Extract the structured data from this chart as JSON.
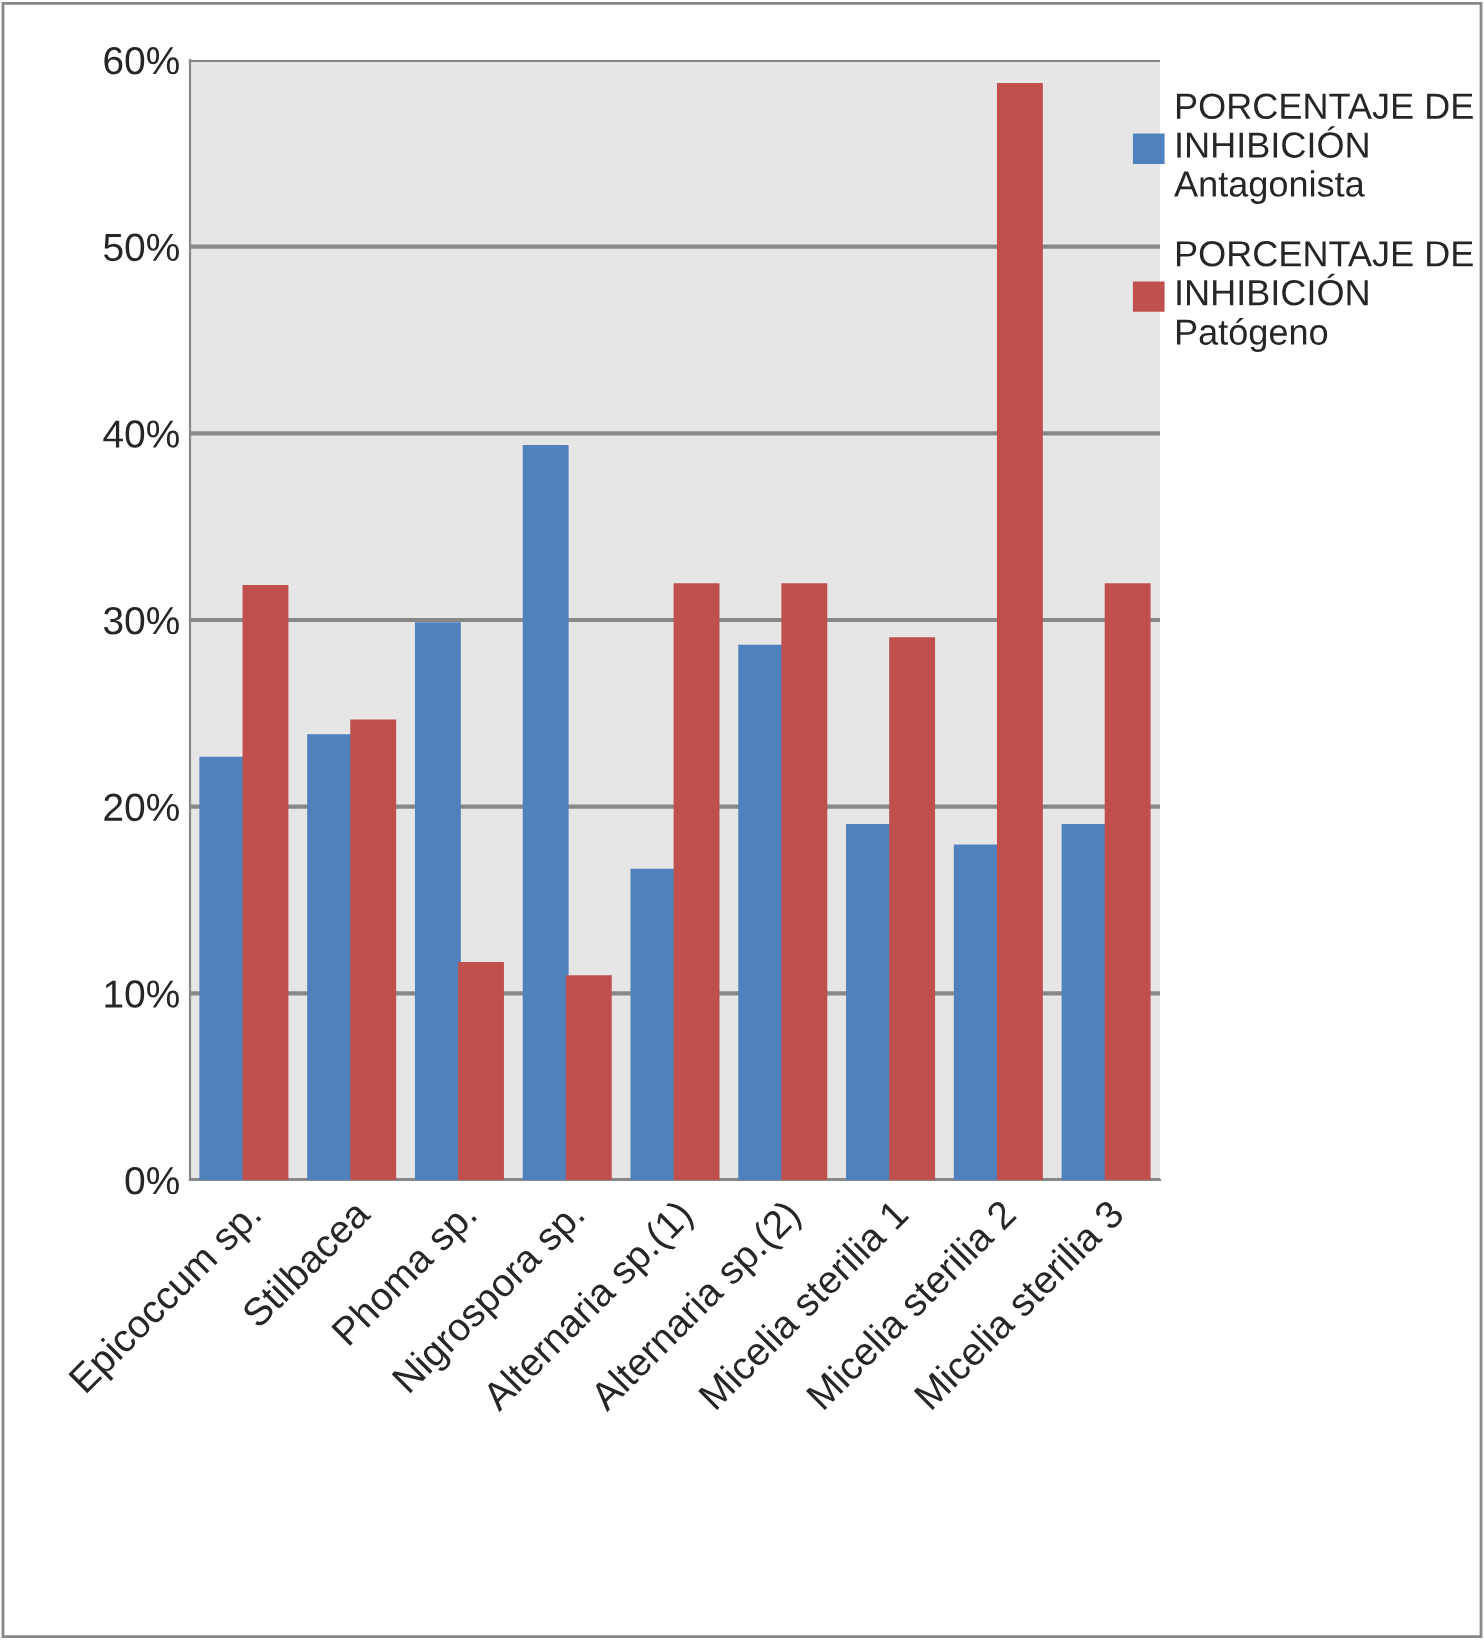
{
  "chart_data": {
    "type": "bar",
    "categories": [
      "Epicoccum sp.",
      "Stilbacea",
      "Phoma sp.",
      "Nigrospora sp.",
      "Alternaria sp.(1)",
      "Alternaria sp.(2)",
      "Micelia sterilia 1",
      "Micelia sterilia 2",
      "Micelia sterilia 3"
    ],
    "series": [
      {
        "name": "PORCENTAJE DE INHIBICIÓN Antagonista",
        "color": "#4f81bd",
        "values": [
          22.6,
          23.8,
          29.8,
          39.3,
          16.6,
          28.6,
          19.0,
          17.9,
          19.0
        ]
      },
      {
        "name": "PORCENTAJE DE INHIBICIÓN Patógeno",
        "color": "#c0504d",
        "values": [
          31.8,
          24.6,
          11.6,
          10.9,
          31.9,
          31.9,
          29.0,
          58.7,
          31.9
        ]
      }
    ],
    "ylim": [
      0,
      60
    ],
    "yticks": [
      {
        "value": 0,
        "label": "0%"
      },
      {
        "value": 10,
        "label": "10%"
      },
      {
        "value": 20,
        "label": "20%"
      },
      {
        "value": 30,
        "label": "30%"
      },
      {
        "value": 40,
        "label": "40%"
      },
      {
        "value": 50,
        "label": "50%"
      },
      {
        "value": 60,
        "label": "60%"
      }
    ],
    "grid": "y",
    "legend": "top right"
  }
}
